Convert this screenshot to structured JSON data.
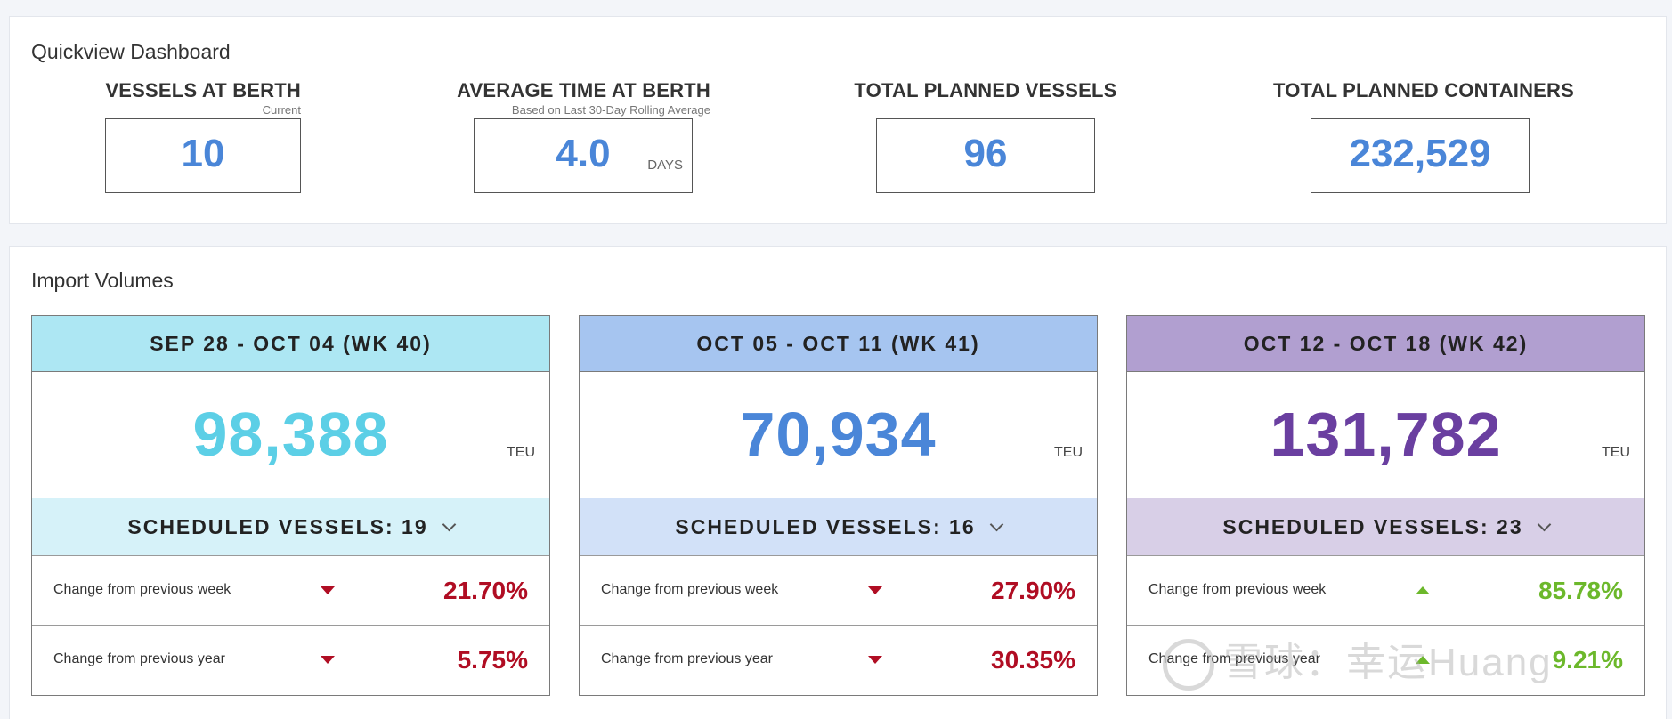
{
  "quickview": {
    "title": "Quickview Dashboard",
    "kpis": [
      {
        "label": "VESSELS AT BERTH",
        "sublabel": "Current",
        "value": "10",
        "unit": ""
      },
      {
        "label": "AVERAGE TIME AT BERTH",
        "sublabel": "Based on Last 30-Day Rolling Average",
        "value": "4.0",
        "unit": "DAYS"
      },
      {
        "label": "TOTAL PLANNED VESSELS",
        "sublabel": "",
        "value": "96",
        "unit": ""
      },
      {
        "label": "TOTAL PLANNED CONTAINERS",
        "sublabel": "",
        "value": "232,529",
        "unit": ""
      }
    ]
  },
  "import": {
    "title": "Import Volumes",
    "weeks": [
      {
        "header": "SEP 28 - OCT 04 (WK 40)",
        "value": "98,388",
        "unit": "TEU",
        "scheduled": "SCHEDULED VESSELS: 19",
        "rows": [
          {
            "label": "Change from previous week",
            "direction": "down",
            "value": "21.70%"
          },
          {
            "label": "Change from previous year",
            "direction": "down",
            "value": "5.75%"
          }
        ]
      },
      {
        "header": "OCT 05 - OCT 11 (WK 41)",
        "value": "70,934",
        "unit": "TEU",
        "scheduled": "SCHEDULED VESSELS: 16",
        "rows": [
          {
            "label": "Change from previous week",
            "direction": "down",
            "value": "27.90%"
          },
          {
            "label": "Change from previous year",
            "direction": "down",
            "value": "30.35%"
          }
        ]
      },
      {
        "header": "OCT 12 - OCT 18 (WK 42)",
        "value": "131,782",
        "unit": "TEU",
        "scheduled": "SCHEDULED VESSELS: 23",
        "rows": [
          {
            "label": "Change from previous week",
            "direction": "up",
            "value": "85.78%"
          },
          {
            "label": "Change from previous year",
            "direction": "up",
            "value": "9.21%"
          }
        ]
      }
    ]
  },
  "colors": {
    "kpi_value": "#4a86d8",
    "week1_value": "#5ccfe6",
    "week2_value": "#4a86d8",
    "week3_value": "#6a3fa0",
    "negative": "#b00d23",
    "positive": "#6cb82b"
  },
  "watermark": "雪球：幸运Huang"
}
